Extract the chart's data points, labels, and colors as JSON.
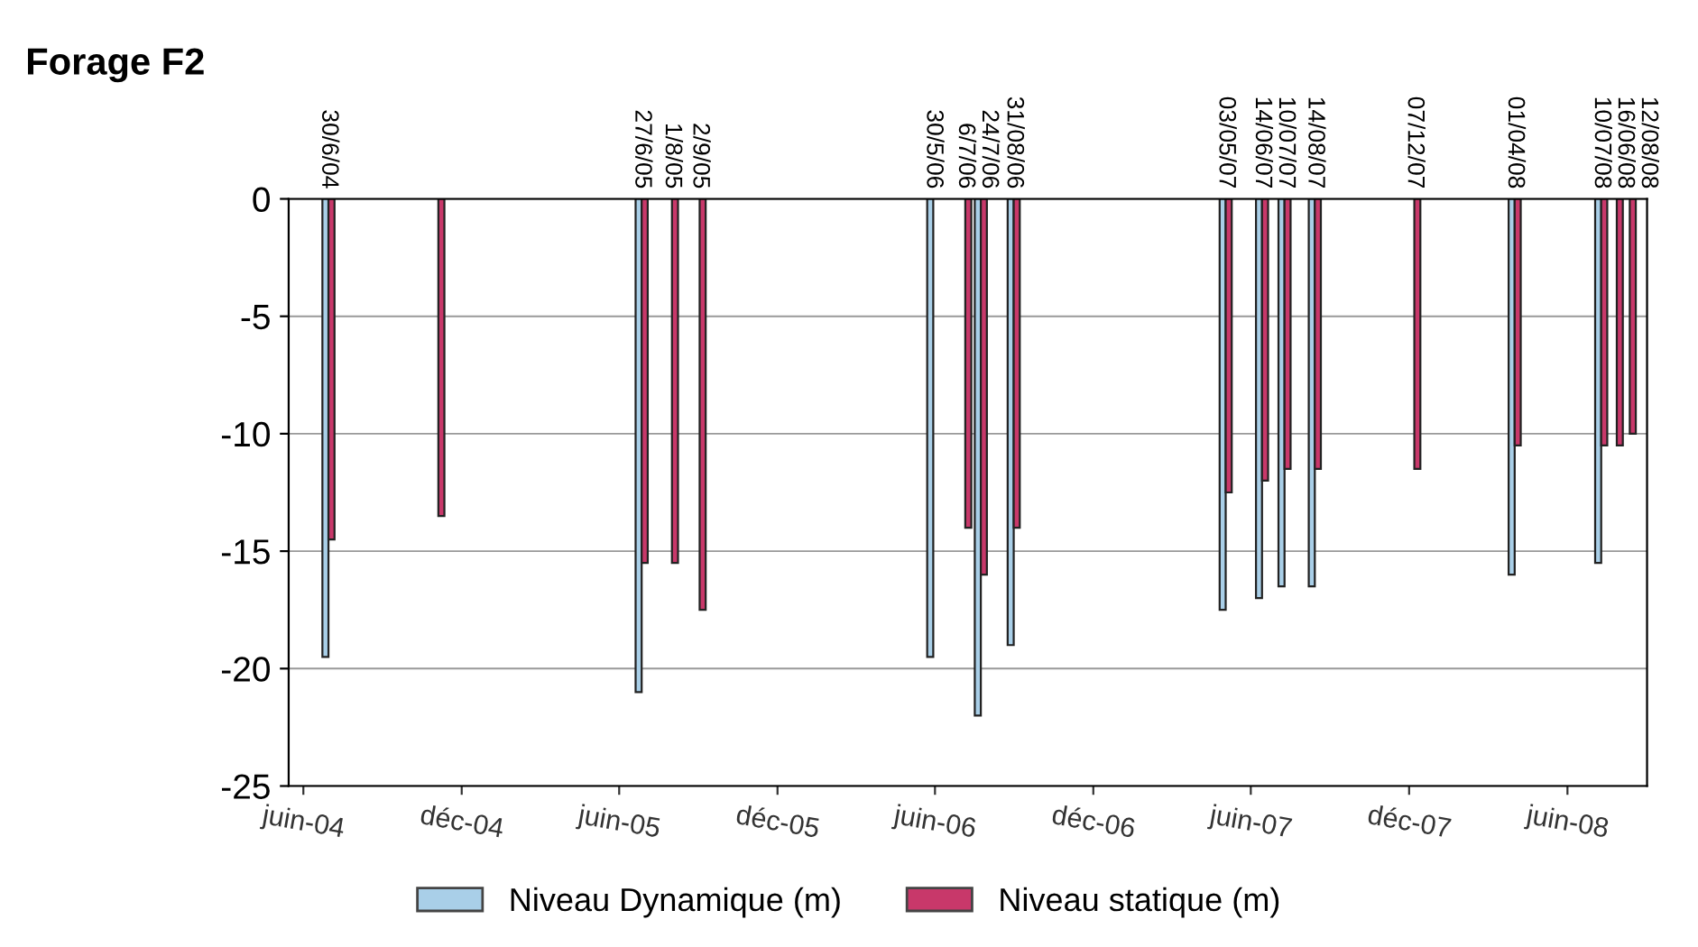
{
  "chart_data": {
    "type": "bar",
    "title": "Forage F2",
    "series": [
      {
        "name": "Niveau Dynamique (m)",
        "color": "#a9cfe8",
        "x": [
          "2004-06-30",
          "2005-06-27",
          "2006-05-30",
          "2006-07-24",
          "2006-08-31",
          "2007-05-03",
          "2007-06-14",
          "2007-07-10",
          "2007-08-14",
          "2008-04-01",
          "2008-07-10"
        ],
        "values": [
          -19.5,
          -21,
          -19.5,
          -22,
          -19,
          -17.5,
          -17,
          -16.5,
          -16.5,
          -16,
          -15.5
        ]
      },
      {
        "name": "Niveau statique (m)",
        "color": "#c8386a",
        "x": [
          "2004-06-30",
          "2004-11-04",
          "2005-06-27",
          "2005-08-01",
          "2005-09-02",
          "2006-07-06",
          "2006-07-24",
          "2006-08-31",
          "2007-05-03",
          "2007-06-14",
          "2007-07-10",
          "2007-08-14",
          "2007-12-07",
          "2008-04-01",
          "2008-07-10",
          "2008-07-28",
          "2008-08-12"
        ],
        "values": [
          -14.5,
          -13.5,
          -15.5,
          -15.5,
          -17.5,
          -14,
          -16,
          -14,
          -12.5,
          -12,
          -11.5,
          -11.5,
          -11.5,
          -10.5,
          -10.5,
          -10.5,
          -10
        ]
      }
    ],
    "annotations": [
      {
        "text": "30/6/04",
        "x": "2004-06-30",
        "y": 0
      },
      {
        "text": "27/6/05",
        "x": "2005-06-27",
        "y": 0
      },
      {
        "text": "1/8/05",
        "x": "2005-08-01",
        "y": 0
      },
      {
        "text": "2/9/05",
        "x": "2005-09-02",
        "y": 0
      },
      {
        "text": "30/5/06",
        "x": "2006-05-30",
        "y": 0
      },
      {
        "text": "6/7/06",
        "x": "2006-07-06",
        "y": 0
      },
      {
        "text": "24/7/06",
        "x": "2006-07-24",
        "y": 0
      },
      {
        "text": "31/08/06",
        "x": "2006-08-31",
        "y": 0
      },
      {
        "text": "03/05/07",
        "x": "2007-05-03",
        "y": 0
      },
      {
        "text": "14/06/07",
        "x": "2007-06-14",
        "y": 0
      },
      {
        "text": "10/07/07",
        "x": "2007-07-10",
        "y": 0
      },
      {
        "text": "14/08/07",
        "x": "2007-08-14",
        "y": 0
      },
      {
        "text": "07/12/07",
        "x": "2007-12-07",
        "y": 0
      },
      {
        "text": "01/04/08",
        "x": "2008-04-01",
        "y": 0
      },
      {
        "text": "10/07/08",
        "x": "2008-07-10",
        "y": 0
      },
      {
        "text": "16/06/08",
        "x": "2008-07-28",
        "y": 0
      },
      {
        "text": "12/08/08",
        "x": "2008-08-12",
        "y": 0
      }
    ],
    "xlim": [
      "2004-05-15",
      "2008-09-01"
    ],
    "xticks": [
      {
        "value": "2004-06-01",
        "label": "juin-04"
      },
      {
        "value": "2004-12-01",
        "label": "déc-04"
      },
      {
        "value": "2005-06-01",
        "label": "juin-05"
      },
      {
        "value": "2005-12-01",
        "label": "déc-05"
      },
      {
        "value": "2006-06-01",
        "label": "juin-06"
      },
      {
        "value": "2006-12-01",
        "label": "déc-06"
      },
      {
        "value": "2007-06-01",
        "label": "juin-07"
      },
      {
        "value": "2007-12-01",
        "label": "déc-07"
      },
      {
        "value": "2008-06-01",
        "label": "juin-08"
      }
    ],
    "ylim": [
      -25,
      0
    ],
    "yticks": [
      0,
      -5,
      -10,
      -15,
      -20,
      -25
    ],
    "grid": "y",
    "legend": "bottom"
  }
}
